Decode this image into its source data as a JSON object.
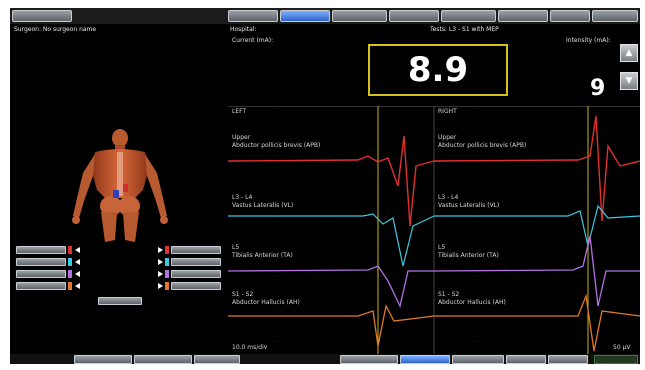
{
  "colors": {
    "background": "#000000",
    "trace_red": "#e03030",
    "trace_cyan": "#3fc8e0",
    "trace_purple": "#b070e0",
    "trace_orange": "#e07828",
    "box_border": "#d4c21a"
  },
  "header": {
    "surgeon": "Surgeon: No surgeon name",
    "hospital": "Hospital:",
    "test": "Tests: L3 - S1 with MEP"
  },
  "stimulus": {
    "current_label": "Current (mA):",
    "current_value": "8.9",
    "intensity_label": "Intensity (mA):",
    "intensity_value": "9"
  },
  "traces": {
    "left_label": "LEFT",
    "right_label": "RIGHT",
    "rows": [
      {
        "level": "Upper",
        "muscle": "Abductor pollicis brevis (APB)",
        "color": "trace_red"
      },
      {
        "level": "L3 - L4",
        "muscle": "Vastus Lateralis (VL)",
        "color": "trace_cyan"
      },
      {
        "level": "L5",
        "muscle": "Tibialis Anterior (TA)",
        "color": "trace_purple"
      },
      {
        "level": "S1 - S2",
        "muscle": "Abductor Hallucis (AH)",
        "color": "trace_orange"
      }
    ],
    "scale_bottom_left": "10.0 ms/div",
    "scale_bottom_right": "50 µV"
  },
  "icons": {
    "up": "triangle-up-icon",
    "down": "triangle-down-icon",
    "body": "anatomy-figure-icon"
  }
}
